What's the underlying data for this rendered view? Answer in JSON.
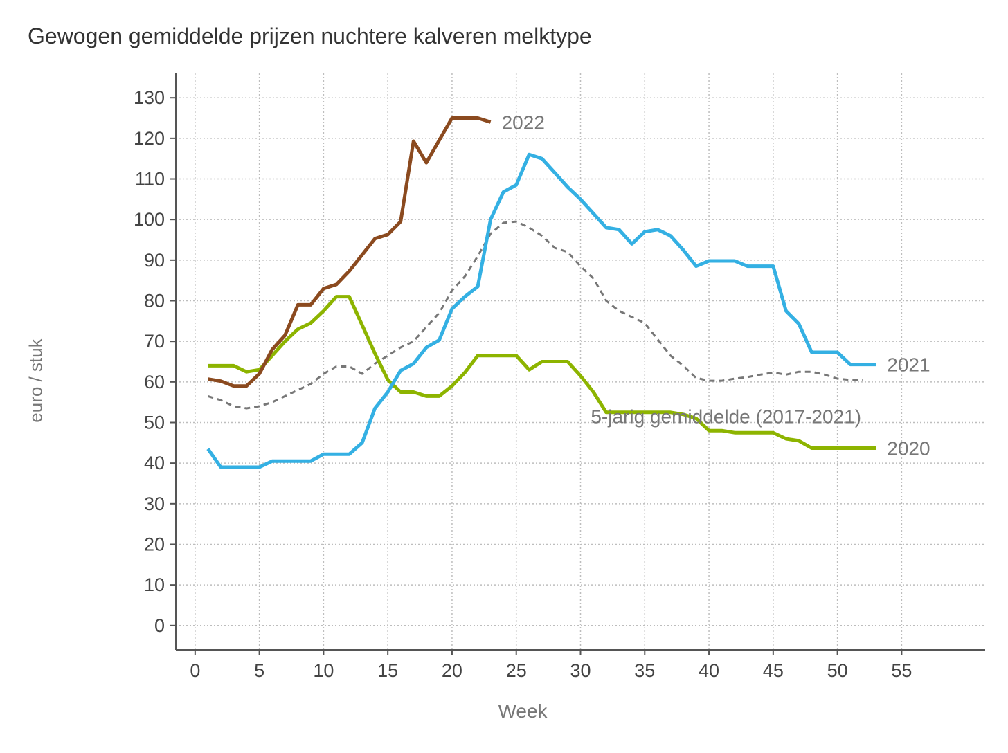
{
  "chart_data": {
    "type": "line",
    "title": "Gewogen gemiddelde prijzen nuchtere kalveren melktype",
    "xlabel": "Week",
    "ylabel": "euro / stuk",
    "xlim": [
      -1.5,
      61.5
    ],
    "ylim": [
      -6,
      136
    ],
    "xticks": [
      0,
      5,
      10,
      15,
      20,
      25,
      30,
      35,
      40,
      45,
      50,
      55
    ],
    "yticks": [
      0,
      10,
      20,
      30,
      40,
      50,
      60,
      70,
      80,
      90,
      100,
      110,
      120,
      130
    ],
    "grid": true,
    "legend": "inline labels at line ends",
    "series": [
      {
        "name": "5-jarig gemiddelde (2017-2021)",
        "color": "#777777",
        "dashed": true,
        "x": [
          1,
          2,
          3,
          4,
          5,
          6,
          7,
          8,
          9,
          10,
          11,
          12,
          13,
          14,
          15,
          16,
          17,
          18,
          19,
          20,
          21,
          22,
          23,
          24,
          25,
          26,
          27,
          28,
          29,
          30,
          31,
          32,
          33,
          34,
          35,
          36,
          37,
          38,
          39,
          40,
          41,
          42,
          43,
          44,
          45,
          46,
          47,
          48,
          49,
          50,
          51,
          52
        ],
        "values": [
          56.5,
          55.5,
          54,
          53.5,
          54,
          55,
          56.5,
          58,
          59.5,
          62,
          63.8,
          63.8,
          62,
          64.5,
          66.5,
          68.5,
          70,
          73.5,
          77,
          82.5,
          86,
          91,
          96.5,
          99.2,
          99.5,
          98,
          96,
          93,
          92,
          88.5,
          85.5,
          80,
          77.5,
          76,
          74.5,
          70.5,
          66.5,
          64,
          61,
          60.3,
          60.3,
          60.8,
          61.2,
          61.8,
          62.3,
          61.8,
          62.5,
          62.5,
          61.8,
          60.8,
          60.5,
          60.5
        ]
      },
      {
        "name": "2020",
        "color": "#8db400",
        "dashed": false,
        "x": [
          1,
          2,
          3,
          4,
          5,
          6,
          7,
          8,
          9,
          10,
          11,
          12,
          13,
          14,
          15,
          16,
          17,
          18,
          19,
          20,
          21,
          22,
          23,
          24,
          25,
          26,
          27,
          28,
          29,
          30,
          31,
          32,
          33,
          34,
          35,
          36,
          37,
          38,
          39,
          40,
          41,
          42,
          43,
          44,
          45,
          46,
          47,
          48,
          49,
          50,
          51,
          52,
          53
        ],
        "values": [
          64,
          64,
          64,
          62.5,
          63,
          66.5,
          70,
          73,
          74.5,
          77.5,
          81,
          81,
          74,
          67,
          60.5,
          57.5,
          57.5,
          56.5,
          56.5,
          59,
          62.3,
          66.5,
          66.5,
          66.5,
          66.5,
          63,
          65,
          65,
          65,
          61.5,
          57.5,
          52.5,
          52.5,
          52.5,
          52.5,
          52.5,
          52.5,
          52,
          51,
          48,
          48,
          47.5,
          47.5,
          47.5,
          47.5,
          46,
          45.5,
          43.7,
          43.7,
          43.7,
          43.7,
          43.7,
          43.7
        ]
      },
      {
        "name": "2021",
        "color": "#34b0e3",
        "dashed": false,
        "x": [
          1,
          2,
          3,
          4,
          5,
          6,
          7,
          8,
          9,
          10,
          11,
          12,
          13,
          14,
          15,
          16,
          17,
          18,
          19,
          20,
          21,
          22,
          23,
          24,
          25,
          26,
          27,
          28,
          29,
          30,
          31,
          32,
          33,
          34,
          35,
          36,
          37,
          38,
          39,
          40,
          41,
          42,
          43,
          44,
          45,
          46,
          47,
          48,
          49,
          50,
          51,
          52,
          53
        ],
        "values": [
          43.5,
          39,
          39,
          39,
          39,
          40.5,
          40.5,
          40.5,
          40.5,
          42.2,
          42.2,
          42.2,
          45,
          53.5,
          57.5,
          62.8,
          64.5,
          68.5,
          70.3,
          78,
          81,
          83.5,
          100,
          106.8,
          108.5,
          116,
          115,
          111.5,
          108,
          105,
          101.5,
          98,
          97.5,
          94,
          97,
          97.5,
          96,
          92.5,
          88.5,
          89.8,
          89.8,
          89.8,
          88.5,
          88.5,
          88.5,
          77.5,
          74.3,
          67.3,
          67.3,
          67.3,
          64.3,
          64.3,
          64.3
        ]
      },
      {
        "name": "2022",
        "color": "#8b4a1f",
        "dashed": false,
        "x": [
          1,
          2,
          3,
          4,
          5,
          6,
          7,
          8,
          9,
          10,
          11,
          12,
          13,
          14,
          15,
          16,
          17,
          18,
          19,
          20,
          21,
          22,
          23
        ],
        "values": [
          60.7,
          60.2,
          59,
          59,
          62,
          68,
          71.5,
          79,
          79,
          83,
          84,
          87.3,
          91.3,
          95.3,
          96.3,
          99.5,
          119.3,
          114,
          119.5,
          125,
          125,
          125,
          124
        ]
      }
    ]
  }
}
